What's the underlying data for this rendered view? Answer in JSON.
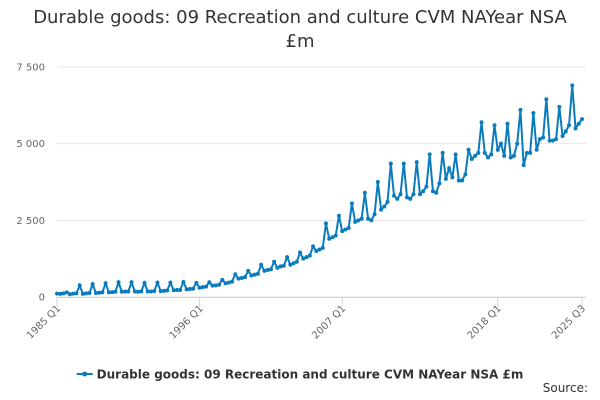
{
  "chart_data": {
    "type": "line",
    "title": "Durable goods: 09 Recreation and culture CVM NAYear NSA £m",
    "source": "Source:",
    "categories": [
      "1985 Q1",
      null,
      null,
      null,
      null,
      null,
      null,
      null,
      null,
      null,
      null,
      null,
      null,
      null,
      null,
      null,
      null,
      null,
      null,
      null,
      null,
      null,
      null,
      null,
      null,
      null,
      null,
      null,
      null,
      null,
      null,
      null,
      null,
      null,
      null,
      null,
      null,
      null,
      null,
      null,
      null,
      null,
      null,
      null,
      "1996 Q1",
      null,
      null,
      null,
      null,
      null,
      null,
      null,
      null,
      null,
      null,
      null,
      null,
      null,
      null,
      null,
      null,
      null,
      null,
      null,
      null,
      null,
      null,
      null,
      null,
      null,
      null,
      null,
      null,
      null,
      null,
      null,
      null,
      null,
      null,
      null,
      null,
      null,
      null,
      null,
      null,
      null,
      null,
      null,
      "2007 Q1",
      null,
      null,
      null,
      null,
      null,
      null,
      null,
      null,
      null,
      null,
      null,
      null,
      null,
      null,
      null,
      null,
      null,
      null,
      null,
      null,
      null,
      null,
      null,
      null,
      null,
      null,
      null,
      null,
      null,
      null,
      null,
      null,
      null,
      null,
      null,
      null,
      null,
      null,
      null,
      null,
      null,
      null,
      null,
      null,
      null,
      null,
      null,
      "2018 Q1",
      null,
      null,
      null,
      null,
      null,
      null,
      null,
      null,
      null,
      null,
      null,
      null,
      null,
      null,
      null,
      null,
      null,
      null,
      null,
      null,
      null,
      null,
      null,
      null,
      null,
      "2025 Q3"
    ],
    "series": [
      {
        "name": "Durable goods: 09 Recreation and culture CVM NAYear NSA £m",
        "color": "#0a7bbd",
        "values": [
          110,
          100,
          120,
          150,
          90,
          110,
          120,
          380,
          100,
          120,
          130,
          420,
          130,
          140,
          150,
          450,
          150,
          160,
          170,
          480,
          170,
          180,
          180,
          480,
          180,
          170,
          180,
          460,
          180,
          180,
          190,
          470,
          190,
          200,
          210,
          470,
          220,
          230,
          230,
          490,
          250,
          260,
          270,
          460,
          300,
          320,
          340,
          480,
          370,
          380,
          400,
          560,
          450,
          470,
          500,
          740,
          600,
          620,
          650,
          850,
          700,
          730,
          760,
          1050,
          850,
          880,
          900,
          1150,
          950,
          1000,
          1020,
          1300,
          1050,
          1100,
          1150,
          1450,
          1250,
          1300,
          1350,
          1650,
          1500,
          1550,
          1600,
          2400,
          1900,
          1950,
          2000,
          2650,
          2150,
          2200,
          2250,
          3050,
          2450,
          2500,
          2550,
          3400,
          2550,
          2500,
          2700,
          3750,
          2850,
          2950,
          3100,
          4350,
          3300,
          3200,
          3350,
          4350,
          3250,
          3200,
          3350,
          4400,
          3350,
          3450,
          3600,
          4650,
          3450,
          3400,
          3700,
          4700,
          3850,
          4200,
          3900,
          4650,
          3800,
          3800,
          4000,
          4800,
          4500,
          4600,
          4700,
          5700,
          4700,
          4550,
          4650,
          5600,
          4800,
          5000,
          4600,
          5650,
          4550,
          4600,
          5000,
          6100,
          4300,
          4700,
          4700,
          6000,
          4800,
          5150,
          5200,
          6450,
          5100,
          5100,
          5150,
          6200,
          5250,
          5400,
          5600,
          6900,
          5500,
          5650,
          5800
        ]
      }
    ],
    "ylim": [
      0,
      7500
    ],
    "yticks": [
      0,
      {
        "value": 2500,
        "label": "2 500"
      },
      {
        "value": 5000,
        "label": "5 000"
      },
      {
        "value": 7500,
        "label": "7 500"
      }
    ],
    "grid": true
  }
}
